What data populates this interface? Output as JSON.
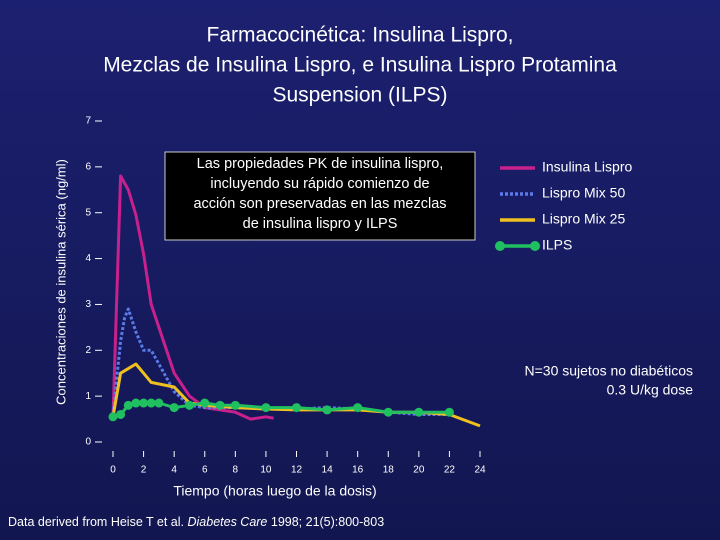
{
  "chart_data": {
    "type": "line",
    "title": [
      "Farmacocinética: Insulina Lispro,",
      "Mezclas de Insulina Lispro, e Insulina Lispro Protamina",
      "Suspension (ILPS)"
    ],
    "xlabel": "Tiempo (horas luego de la dosis)",
    "ylabel": "Concentraciones de insulina sérica (ng/ml)",
    "xlim": [
      0,
      24
    ],
    "ylim": [
      0,
      7
    ],
    "xticks": [
      0,
      2,
      4,
      6,
      8,
      10,
      12,
      14,
      16,
      18,
      20,
      22,
      24
    ],
    "yticks": [
      0,
      1,
      2,
      3,
      4,
      5,
      6,
      7
    ],
    "annotation": [
      "Las propiedades PK de insulina lispro,",
      "incluyendo su rápido comienzo de",
      "acción son preservadas en las mezclas",
      "de insulina lispro y ILPS"
    ],
    "note": [
      "N=30 sujetos no diabéticos",
      "0.3 U/kg dose"
    ],
    "source": [
      "Data derived from Heise T et al. ",
      "Diabetes Care",
      " 1998; 21(5):800-803"
    ],
    "series": [
      {
        "name": "Insulina Lispro",
        "color": "#c8208c",
        "style": "solid",
        "x": [
          0,
          0.5,
          1,
          1.5,
          2,
          2.5,
          3,
          4,
          5,
          6,
          7,
          8,
          9,
          10,
          10.5
        ],
        "values": [
          0.55,
          5.8,
          5.5,
          4.95,
          4.1,
          3.0,
          2.5,
          1.5,
          1.0,
          0.75,
          0.7,
          0.65,
          0.5,
          0.55,
          0.52
        ]
      },
      {
        "name": "Lispro Mix 50",
        "color": "#5a7ae8",
        "style": "dotted",
        "x": [
          0,
          0.5,
          0.75,
          1,
          1.5,
          2,
          2.5,
          3,
          4,
          5,
          6,
          8,
          10,
          12,
          14,
          16,
          18,
          20,
          22
        ],
        "values": [
          0.6,
          2.2,
          2.7,
          2.9,
          2.4,
          2.0,
          2.0,
          1.7,
          1.1,
          0.8,
          0.75,
          0.75,
          0.72,
          0.72,
          0.75,
          0.72,
          0.65,
          0.6,
          0.6
        ]
      },
      {
        "name": "Lispro Mix 25",
        "color": "#f0c020",
        "style": "solid",
        "x": [
          0,
          0.5,
          1,
          1.5,
          2,
          2.5,
          4,
          5,
          6,
          8,
          10,
          12,
          14,
          16,
          18,
          20,
          22,
          24
        ],
        "values": [
          0.55,
          1.5,
          1.6,
          1.7,
          1.5,
          1.3,
          1.2,
          0.85,
          0.8,
          0.75,
          0.72,
          0.7,
          0.7,
          0.7,
          0.65,
          0.65,
          0.6,
          0.35
        ]
      },
      {
        "name": "ILPS",
        "color": "#20c060",
        "style": "markers",
        "x": [
          0,
          0.5,
          1,
          1.5,
          2,
          2.5,
          3,
          4,
          5,
          6,
          7,
          8,
          10,
          12,
          14,
          16,
          18,
          20,
          22
        ],
        "values": [
          0.55,
          0.6,
          0.8,
          0.85,
          0.85,
          0.85,
          0.85,
          0.75,
          0.8,
          0.85,
          0.8,
          0.8,
          0.75,
          0.75,
          0.7,
          0.75,
          0.65,
          0.65,
          0.65
        ]
      }
    ]
  }
}
